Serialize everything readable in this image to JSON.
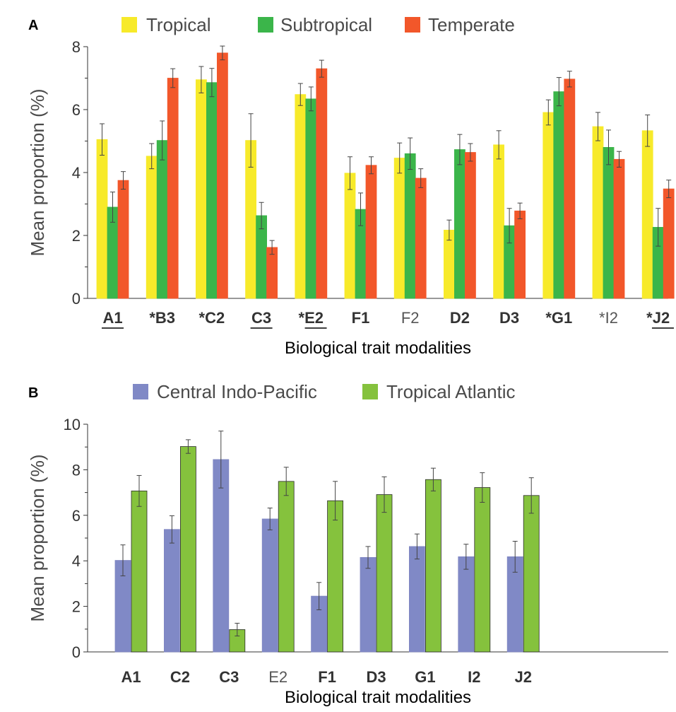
{
  "chart_data": [
    {
      "panel_label": "A",
      "type": "bar",
      "xlabel": "Biological trait modalities",
      "ylabel": "Mean proportion (%)",
      "ylim": [
        0,
        8
      ],
      "yticks": [
        0,
        2,
        4,
        6,
        8
      ],
      "grid": false,
      "legend_position": "top",
      "categories": [
        {
          "label": "A1",
          "bold": true,
          "underline": true
        },
        {
          "label": "*B3",
          "bold": true,
          "underline": false
        },
        {
          "label": "*C2",
          "bold": true,
          "underline": false
        },
        {
          "label": "C3",
          "bold": true,
          "underline": true
        },
        {
          "label": "*E2",
          "bold": true,
          "underline": true
        },
        {
          "label": "F1",
          "bold": true,
          "underline": false
        },
        {
          "label": "F2",
          "bold": false,
          "underline": false
        },
        {
          "label": "D2",
          "bold": true,
          "underline": false
        },
        {
          "label": "D3",
          "bold": true,
          "underline": false
        },
        {
          "label": "*G1",
          "bold": true,
          "underline": false
        },
        {
          "label": "*I2",
          "bold": false,
          "underline": false
        },
        {
          "label": "*J2",
          "bold": true,
          "underline": true
        }
      ],
      "series": [
        {
          "name": "Tropical",
          "color": "#f7ea2a",
          "border": "#f7ea2a",
          "values": [
            5.05,
            4.52,
            6.95,
            5.02,
            6.48,
            3.98,
            4.46,
            2.17,
            4.88,
            5.91,
            5.46,
            5.33
          ],
          "errors": [
            0.5,
            0.4,
            0.42,
            0.85,
            0.35,
            0.52,
            0.48,
            0.32,
            0.45,
            0.4,
            0.45,
            0.5
          ]
        },
        {
          "name": "Subtropical",
          "color": "#3bb54a",
          "border": "#3bb54a",
          "values": [
            2.9,
            5.02,
            6.86,
            2.63,
            6.34,
            2.83,
            4.6,
            4.73,
            2.31,
            6.57,
            4.8,
            2.26
          ],
          "errors": [
            0.48,
            0.62,
            0.45,
            0.42,
            0.38,
            0.52,
            0.5,
            0.48,
            0.55,
            0.45,
            0.55,
            0.6
          ]
        },
        {
          "name": "Temperate",
          "color": "#f2572a",
          "border": "#f2572a",
          "values": [
            3.75,
            7.0,
            7.8,
            1.62,
            7.3,
            4.23,
            3.82,
            4.64,
            2.78,
            6.97,
            4.42,
            3.48
          ],
          "errors": [
            0.28,
            0.3,
            0.22,
            0.22,
            0.27,
            0.27,
            0.3,
            0.28,
            0.25,
            0.25,
            0.25,
            0.28
          ]
        }
      ]
    },
    {
      "panel_label": "B",
      "type": "bar",
      "xlabel": "Biological trait modalities",
      "ylabel": "Mean proportion (%)",
      "ylim": [
        0,
        10
      ],
      "yticks": [
        0,
        2,
        4,
        6,
        8,
        10
      ],
      "grid": false,
      "legend_position": "top",
      "categories": [
        {
          "label": "A1",
          "bold": true,
          "underline": false
        },
        {
          "label": "C2",
          "bold": true,
          "underline": false
        },
        {
          "label": "C3",
          "bold": true,
          "underline": false
        },
        {
          "label": "E2",
          "bold": false,
          "underline": false
        },
        {
          "label": "F1",
          "bold": true,
          "underline": false
        },
        {
          "label": "D3",
          "bold": true,
          "underline": false
        },
        {
          "label": "G1",
          "bold": true,
          "underline": false
        },
        {
          "label": "I2",
          "bold": true,
          "underline": false
        },
        {
          "label": "J2",
          "bold": true,
          "underline": false
        }
      ],
      "series": [
        {
          "name": "Central Indo-Pacific",
          "color": "#8089c6",
          "border": "#7f86c2",
          "values": [
            4.02,
            5.38,
            8.45,
            5.84,
            2.45,
            4.15,
            4.63,
            4.18,
            4.18
          ],
          "errors": [
            0.68,
            0.6,
            1.25,
            0.48,
            0.6,
            0.48,
            0.55,
            0.55,
            0.68
          ]
        },
        {
          "name": "Tropical Atlantic",
          "color": "#85c23d",
          "border": "#2c2c2c",
          "values": [
            7.07,
            9.02,
            0.98,
            7.49,
            6.64,
            6.91,
            7.57,
            7.22,
            6.87
          ],
          "errors": [
            0.68,
            0.3,
            0.28,
            0.62,
            0.85,
            0.78,
            0.5,
            0.65,
            0.78
          ]
        }
      ]
    }
  ]
}
